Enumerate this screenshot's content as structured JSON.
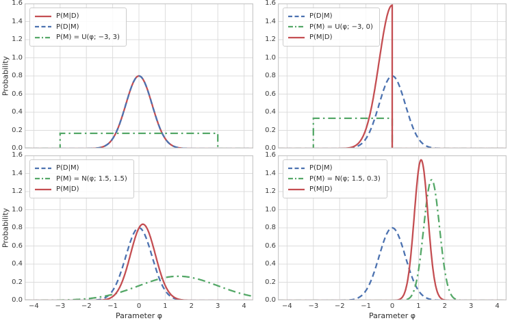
{
  "figure": {
    "xlabel": "Parameter φ",
    "ylabel": "Probability",
    "x_ticks": [
      -4,
      -3,
      -2,
      -1,
      0,
      1,
      2,
      3,
      4
    ],
    "x_tick_labels": [
      "−4",
      "−3",
      "−2",
      "−1",
      "0",
      "1",
      "2",
      "3",
      "4"
    ],
    "y_ticks": [
      "0.0",
      "0.2",
      "0.4",
      "0.6",
      "0.8",
      "1.0",
      "1.2",
      "1.4",
      "1.6"
    ],
    "xlim": [
      -4.35,
      4.35
    ],
    "ylim": [
      0,
      1.6
    ],
    "grid": true,
    "grid_color": "#dcdcdc",
    "spine_color": "#c9c9c9",
    "background": "#ffffff"
  },
  "palette": {
    "red": "#c44e52",
    "blue": "#4c72b0",
    "green": "#55a868"
  },
  "chart_data": [
    {
      "id": "top-left",
      "type": "line",
      "legend_position": "upper left",
      "xlabel": "",
      "ylabel": "Probability",
      "series": [
        {
          "label": "P(M|D)",
          "color": "red",
          "style": "solid",
          "curve": {
            "kind": "gaussian",
            "mean": 0,
            "sd": 0.5,
            "peak": 0.8
          }
        },
        {
          "label": "P(D|M)",
          "color": "blue",
          "style": "dashed",
          "curve": {
            "kind": "gaussian",
            "mean": 0,
            "sd": 0.5,
            "peak": 0.8
          }
        },
        {
          "label": "P(M) = U(φ; −3, 3)",
          "color": "green",
          "style": "dashdot",
          "curve": {
            "kind": "uniform",
            "low": -3,
            "high": 3,
            "height": 0.167
          }
        }
      ]
    },
    {
      "id": "top-right",
      "type": "line",
      "legend_position": "upper left",
      "xlabel": "",
      "ylabel": "",
      "series": [
        {
          "label": "P(D|M)",
          "color": "blue",
          "style": "dashed",
          "curve": {
            "kind": "gaussian",
            "mean": 0,
            "sd": 0.5,
            "peak": 0.8
          }
        },
        {
          "label": "P(M) = U(φ; −3, 0)",
          "color": "green",
          "style": "dashdot",
          "curve": {
            "kind": "uniform",
            "low": -3,
            "high": 0,
            "height": 0.333
          }
        },
        {
          "label": "P(M|D)",
          "color": "red",
          "style": "solid",
          "curve": {
            "kind": "truncated_gaussian",
            "mean": 0,
            "sd": 0.5,
            "peak": 1.58,
            "low": -3,
            "high": 0
          }
        }
      ]
    },
    {
      "id": "bottom-left",
      "type": "line",
      "legend_position": "upper left",
      "xlabel": "Parameter φ",
      "ylabel": "Probability",
      "series": [
        {
          "label": "P(D|M)",
          "color": "blue",
          "style": "dashed",
          "curve": {
            "kind": "gaussian",
            "mean": 0,
            "sd": 0.5,
            "peak": 0.8
          }
        },
        {
          "label": "P(M) = N(φ; 1.5, 1.5)",
          "color": "green",
          "style": "dashdot",
          "curve": {
            "kind": "gaussian",
            "mean": 1.5,
            "sd": 1.5,
            "peak": 0.266
          }
        },
        {
          "label": "P(M|D)",
          "color": "red",
          "style": "solid",
          "curve": {
            "kind": "gaussian",
            "mean": 0.15,
            "sd": 0.47,
            "peak": 0.84
          }
        }
      ]
    },
    {
      "id": "bottom-right",
      "type": "line",
      "legend_position": "upper left",
      "xlabel": "Parameter φ",
      "ylabel": "",
      "series": [
        {
          "label": "P(D|M)",
          "color": "blue",
          "style": "dashed",
          "curve": {
            "kind": "gaussian",
            "mean": 0,
            "sd": 0.5,
            "peak": 0.8
          }
        },
        {
          "label": "P(M) = N(φ; 1.5, 0.3)",
          "color": "green",
          "style": "dashdot",
          "curve": {
            "kind": "gaussian",
            "mean": 1.5,
            "sd": 0.3,
            "peak": 1.33
          }
        },
        {
          "label": "P(M|D)",
          "color": "red",
          "style": "solid",
          "curve": {
            "kind": "gaussian",
            "mean": 1.1,
            "sd": 0.26,
            "peak": 1.55
          }
        }
      ]
    }
  ]
}
